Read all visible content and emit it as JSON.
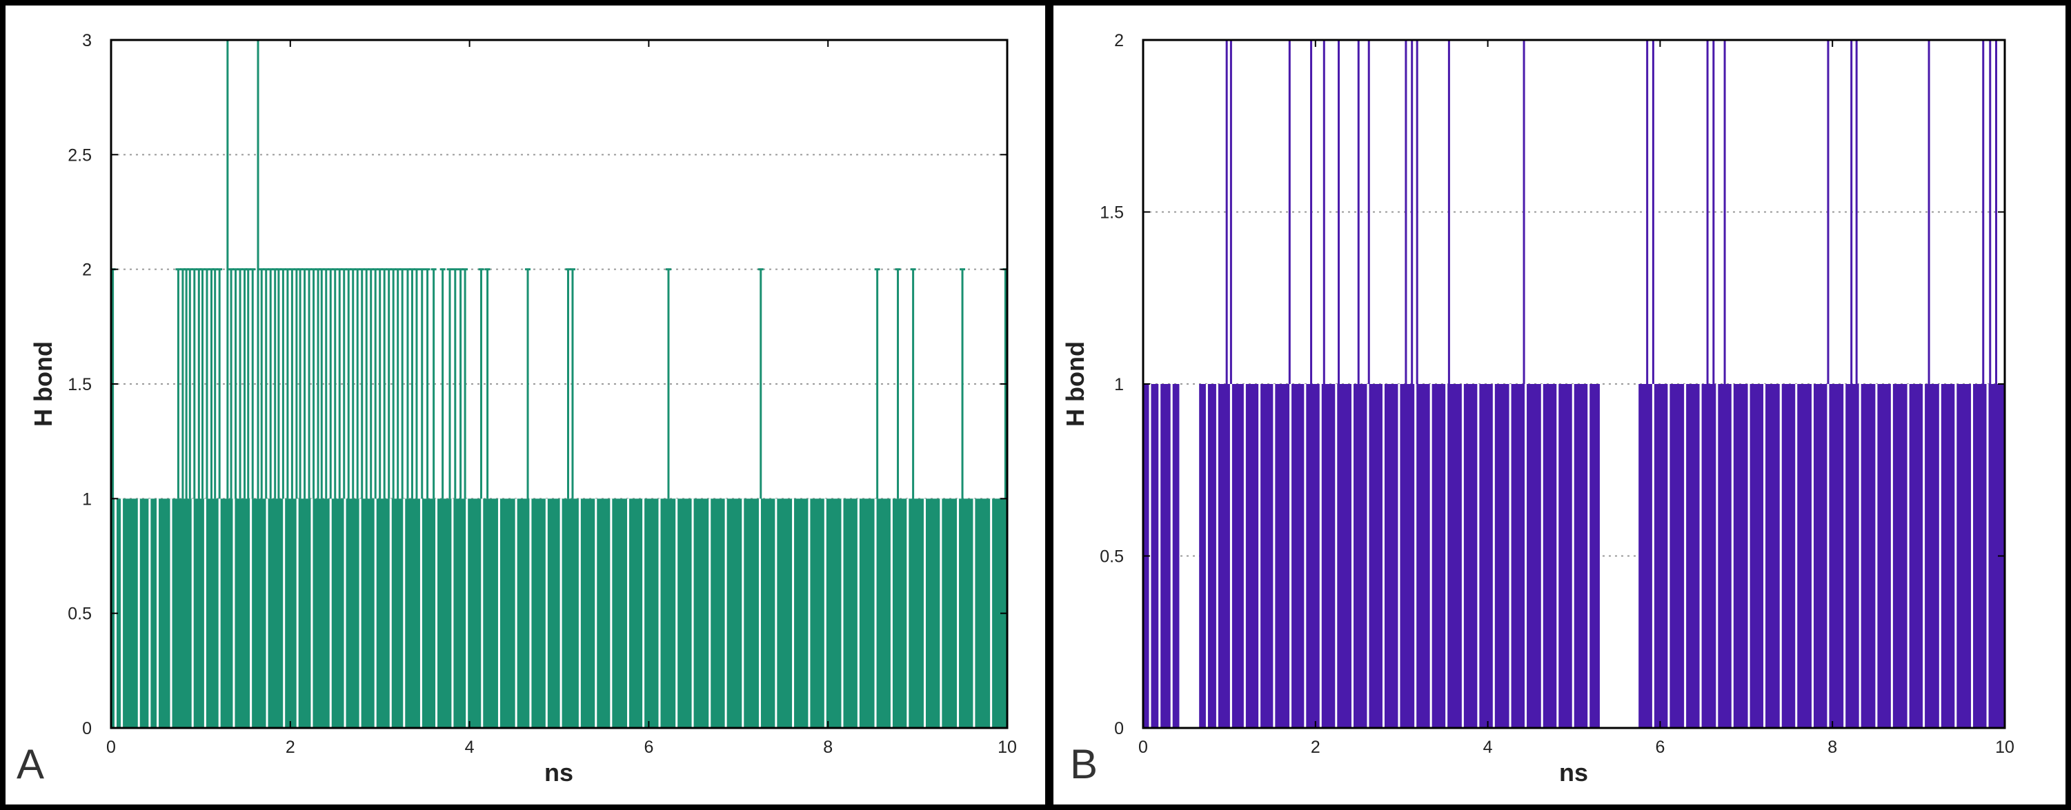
{
  "figure": {
    "panels": [
      {
        "label": "A",
        "color": "#1a9071"
      },
      {
        "label": "B",
        "color": "#4a1aab"
      }
    ]
  },
  "chart_data": [
    {
      "panel": "A",
      "type": "bar",
      "title": "",
      "xlabel": "ns",
      "ylabel": "H bond",
      "xlim": [
        0,
        10
      ],
      "ylim": [
        0,
        3
      ],
      "xticks": [
        0,
        2,
        4,
        6,
        8,
        10
      ],
      "xtick_labels": [
        "0",
        "2",
        "4",
        "6",
        "8",
        "10"
      ],
      "yticks": [
        0,
        0.5,
        1,
        1.5,
        2,
        2.5,
        3
      ],
      "ytick_labels": [
        "0",
        "0.5",
        "1",
        "1.5",
        "2",
        "2.5",
        "3"
      ],
      "grid": "horizontal dotted",
      "series": [
        {
          "name": "H bond",
          "color": "#1a9071",
          "baseline": 1,
          "baseline_range": [
            0,
            10
          ],
          "baseline_gaps": [
            0.05,
            0.12,
            0.31,
            0.43,
            0.52,
            0.67,
            0.91,
            1.05,
            1.21,
            1.37,
            1.56,
            1.74,
            1.93,
            2.08,
            2.24,
            2.45,
            2.61,
            2.78,
            2.95,
            3.12,
            3.27,
            3.46,
            3.63,
            3.81,
            3.97,
            4.14,
            4.33,
            4.52,
            4.68,
            4.86,
            5.02,
            5.23,
            5.41,
            5.58,
            5.77,
            5.94,
            6.12,
            6.31,
            6.49,
            6.68,
            6.86,
            7.05,
            7.24,
            7.42,
            7.61,
            7.79,
            7.97,
            8.16,
            8.34,
            8.53,
            8.71,
            8.89,
            9.08,
            9.26,
            9.45,
            9.63,
            9.82
          ],
          "peaks": [
            {
              "x": 0.02,
              "y": 2
            },
            {
              "x": 0.75,
              "y": 2
            },
            {
              "x": 0.8,
              "y": 2
            },
            {
              "x": 0.84,
              "y": 2
            },
            {
              "x": 0.88,
              "y": 2
            },
            {
              "x": 0.93,
              "y": 2
            },
            {
              "x": 0.98,
              "y": 2
            },
            {
              "x": 1.02,
              "y": 2
            },
            {
              "x": 1.07,
              "y": 2
            },
            {
              "x": 1.12,
              "y": 2
            },
            {
              "x": 1.16,
              "y": 2
            },
            {
              "x": 1.21,
              "y": 2
            },
            {
              "x": 1.3,
              "y": 3
            },
            {
              "x": 1.34,
              "y": 2
            },
            {
              "x": 1.39,
              "y": 2
            },
            {
              "x": 1.44,
              "y": 2
            },
            {
              "x": 1.49,
              "y": 2
            },
            {
              "x": 1.53,
              "y": 2
            },
            {
              "x": 1.58,
              "y": 2
            },
            {
              "x": 1.64,
              "y": 3
            },
            {
              "x": 1.68,
              "y": 2
            },
            {
              "x": 1.73,
              "y": 2
            },
            {
              "x": 1.78,
              "y": 2
            },
            {
              "x": 1.83,
              "y": 2
            },
            {
              "x": 1.87,
              "y": 2
            },
            {
              "x": 1.92,
              "y": 2
            },
            {
              "x": 1.97,
              "y": 2
            },
            {
              "x": 2.02,
              "y": 2
            },
            {
              "x": 2.07,
              "y": 2
            },
            {
              "x": 2.11,
              "y": 2
            },
            {
              "x": 2.16,
              "y": 2
            },
            {
              "x": 2.21,
              "y": 2
            },
            {
              "x": 2.26,
              "y": 2
            },
            {
              "x": 2.31,
              "y": 2
            },
            {
              "x": 2.35,
              "y": 2
            },
            {
              "x": 2.4,
              "y": 2
            },
            {
              "x": 2.45,
              "y": 2
            },
            {
              "x": 2.5,
              "y": 2
            },
            {
              "x": 2.55,
              "y": 2
            },
            {
              "x": 2.6,
              "y": 2
            },
            {
              "x": 2.65,
              "y": 2
            },
            {
              "x": 2.7,
              "y": 2
            },
            {
              "x": 2.75,
              "y": 2
            },
            {
              "x": 2.8,
              "y": 2
            },
            {
              "x": 2.85,
              "y": 2
            },
            {
              "x": 2.9,
              "y": 2
            },
            {
              "x": 2.95,
              "y": 2
            },
            {
              "x": 3.0,
              "y": 2
            },
            {
              "x": 3.05,
              "y": 2
            },
            {
              "x": 3.1,
              "y": 2
            },
            {
              "x": 3.15,
              "y": 2
            },
            {
              "x": 3.2,
              "y": 2
            },
            {
              "x": 3.25,
              "y": 2
            },
            {
              "x": 3.31,
              "y": 2
            },
            {
              "x": 3.36,
              "y": 2
            },
            {
              "x": 3.41,
              "y": 2
            },
            {
              "x": 3.47,
              "y": 2
            },
            {
              "x": 3.53,
              "y": 2
            },
            {
              "x": 3.6,
              "y": 2
            },
            {
              "x": 3.7,
              "y": 2
            },
            {
              "x": 3.78,
              "y": 2
            },
            {
              "x": 3.84,
              "y": 2
            },
            {
              "x": 3.9,
              "y": 2
            },
            {
              "x": 3.95,
              "y": 2
            },
            {
              "x": 4.13,
              "y": 2
            },
            {
              "x": 4.2,
              "y": 2
            },
            {
              "x": 4.65,
              "y": 2
            },
            {
              "x": 5.1,
              "y": 2
            },
            {
              "x": 5.15,
              "y": 2
            },
            {
              "x": 6.22,
              "y": 2
            },
            {
              "x": 7.25,
              "y": 2
            },
            {
              "x": 8.55,
              "y": 2
            },
            {
              "x": 8.78,
              "y": 2
            },
            {
              "x": 8.95,
              "y": 2
            },
            {
              "x": 9.5,
              "y": 2
            },
            {
              "x": 9.98,
              "y": 2
            }
          ]
        }
      ]
    },
    {
      "panel": "B",
      "type": "bar",
      "title": "",
      "xlabel": "ns",
      "ylabel": "H bond",
      "xlim": [
        0,
        10
      ],
      "ylim": [
        0,
        2
      ],
      "xticks": [
        0,
        2,
        4,
        6,
        8,
        10
      ],
      "xtick_labels": [
        "0",
        "2",
        "4",
        "6",
        "8",
        "10"
      ],
      "yticks": [
        0,
        0.5,
        1,
        1.5,
        2
      ],
      "ytick_labels": [
        "0",
        "0.5",
        "1",
        "1.5",
        "2"
      ],
      "grid": "horizontal dotted",
      "series": [
        {
          "name": "H bond",
          "color": "#4a1aab",
          "baseline": 1,
          "baseline_ranges": [
            [
              0.0,
              0.42
            ],
            [
              0.65,
              5.3
            ],
            [
              5.75,
              10.0
            ]
          ],
          "baseline_gaps": [
            0.08,
            0.19,
            0.33,
            0.74,
            0.86,
            1.02,
            1.18,
            1.35,
            1.52,
            1.71,
            1.88,
            2.06,
            2.24,
            2.43,
            2.61,
            2.79,
            2.97,
            3.16,
            3.34,
            3.52,
            3.71,
            3.89,
            4.07,
            4.26,
            4.44,
            4.63,
            4.81,
            4.99,
            5.17,
            5.92,
            6.1,
            6.29,
            6.47,
            6.66,
            6.84,
            7.03,
            7.21,
            7.4,
            7.58,
            7.77,
            7.95,
            8.14,
            8.32,
            8.51,
            8.69,
            8.88,
            9.06,
            9.25,
            9.43,
            9.62,
            9.8
          ],
          "peaks": [
            {
              "x": 0.97,
              "y": 2
            },
            {
              "x": 1.02,
              "y": 2
            },
            {
              "x": 1.7,
              "y": 2
            },
            {
              "x": 1.95,
              "y": 2
            },
            {
              "x": 2.1,
              "y": 2
            },
            {
              "x": 2.27,
              "y": 2
            },
            {
              "x": 2.5,
              "y": 2
            },
            {
              "x": 2.62,
              "y": 2
            },
            {
              "x": 3.05,
              "y": 2
            },
            {
              "x": 3.12,
              "y": 2
            },
            {
              "x": 3.18,
              "y": 2
            },
            {
              "x": 3.55,
              "y": 2
            },
            {
              "x": 4.42,
              "y": 2
            },
            {
              "x": 5.85,
              "y": 2
            },
            {
              "x": 5.92,
              "y": 2
            },
            {
              "x": 6.55,
              "y": 2
            },
            {
              "x": 6.62,
              "y": 2
            },
            {
              "x": 6.75,
              "y": 2
            },
            {
              "x": 7.95,
              "y": 2
            },
            {
              "x": 8.22,
              "y": 2
            },
            {
              "x": 8.28,
              "y": 2
            },
            {
              "x": 9.12,
              "y": 2
            },
            {
              "x": 9.75,
              "y": 2
            },
            {
              "x": 9.83,
              "y": 2
            },
            {
              "x": 9.9,
              "y": 2
            }
          ]
        }
      ]
    }
  ]
}
